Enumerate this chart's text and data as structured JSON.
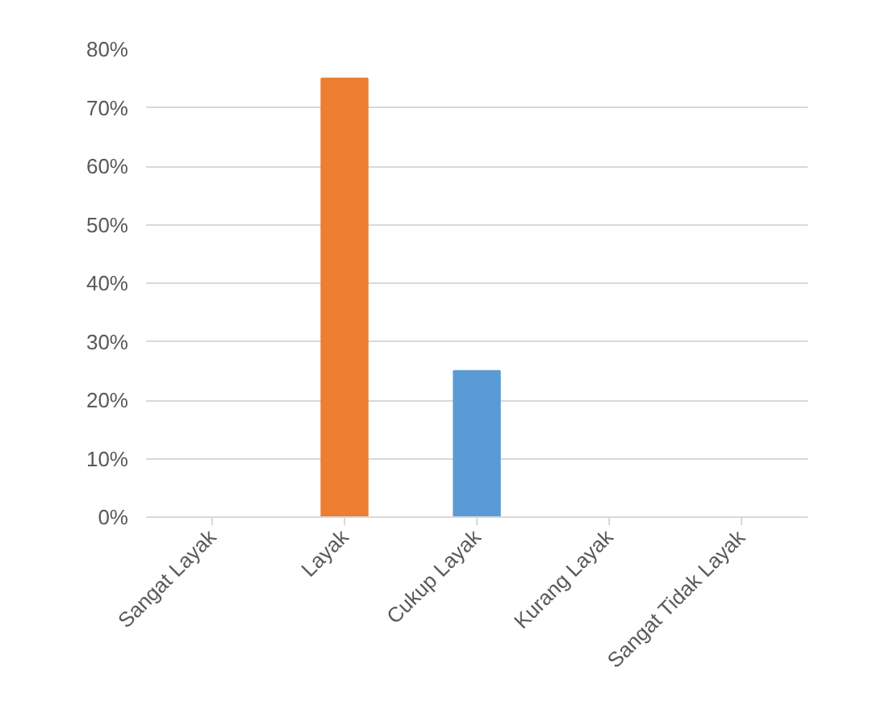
{
  "chart_data": {
    "type": "bar",
    "categories": [
      "Sangat Layak",
      "Layak",
      "Cukup Layak",
      "Kurang Layak",
      "Sangat Tidak Layak"
    ],
    "values": [
      0,
      75,
      25,
      0,
      0
    ],
    "colors": [
      "#5b9bd5",
      "#ed7d31",
      "#5b9bd5",
      "#5b9bd5",
      "#5b9bd5"
    ],
    "ylim": [
      0,
      80
    ],
    "yticks": [
      {
        "value": 0,
        "label": "0%"
      },
      {
        "value": 10,
        "label": "10%"
      },
      {
        "value": 20,
        "label": "20%"
      },
      {
        "value": 30,
        "label": "30%"
      },
      {
        "value": 40,
        "label": "40%"
      },
      {
        "value": 50,
        "label": "50%"
      },
      {
        "value": 60,
        "label": "60%"
      },
      {
        "value": 70,
        "label": "70%"
      },
      {
        "value": 80,
        "label": "80%"
      }
    ],
    "grid": "y"
  }
}
